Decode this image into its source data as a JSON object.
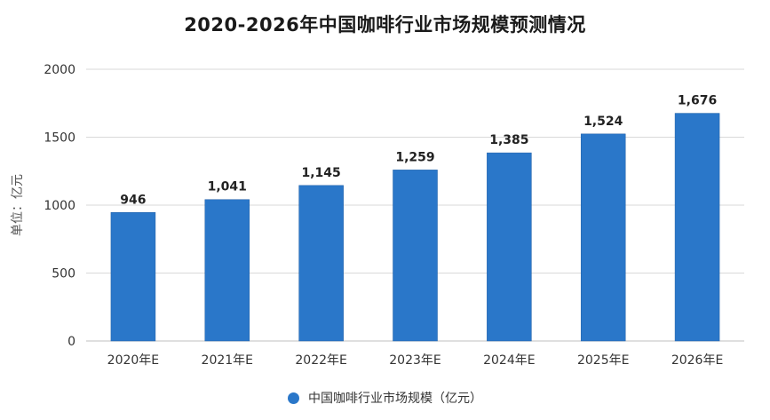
{
  "chart_data": {
    "type": "bar",
    "title": "2020-2026年中国咖啡行业市场规模预测情况",
    "ylabel": "单位：亿元",
    "categories": [
      "2020年E",
      "2021年E",
      "2022年E",
      "2023年E",
      "2024年E",
      "2025年E",
      "2026年E"
    ],
    "series": [
      {
        "name": "中国咖啡行业市场规模（亿元）",
        "values": [
          946,
          1041,
          1145,
          1259,
          1385,
          1524,
          1676
        ],
        "labels": [
          "946",
          "1,041",
          "1,145",
          "1,259",
          "1,385",
          "1,524",
          "1,676"
        ],
        "color": "#2a77c9"
      }
    ],
    "ylim": [
      0,
      2000
    ],
    "yticks": [
      0,
      500,
      1000,
      1500,
      2000
    ],
    "grid": true,
    "legend_position": "bottom"
  },
  "colors": {
    "bar": "#2a77c9",
    "bar_edge": "#1f5fa6",
    "grid": "#d9d9d9",
    "axis_text": "#333333"
  }
}
